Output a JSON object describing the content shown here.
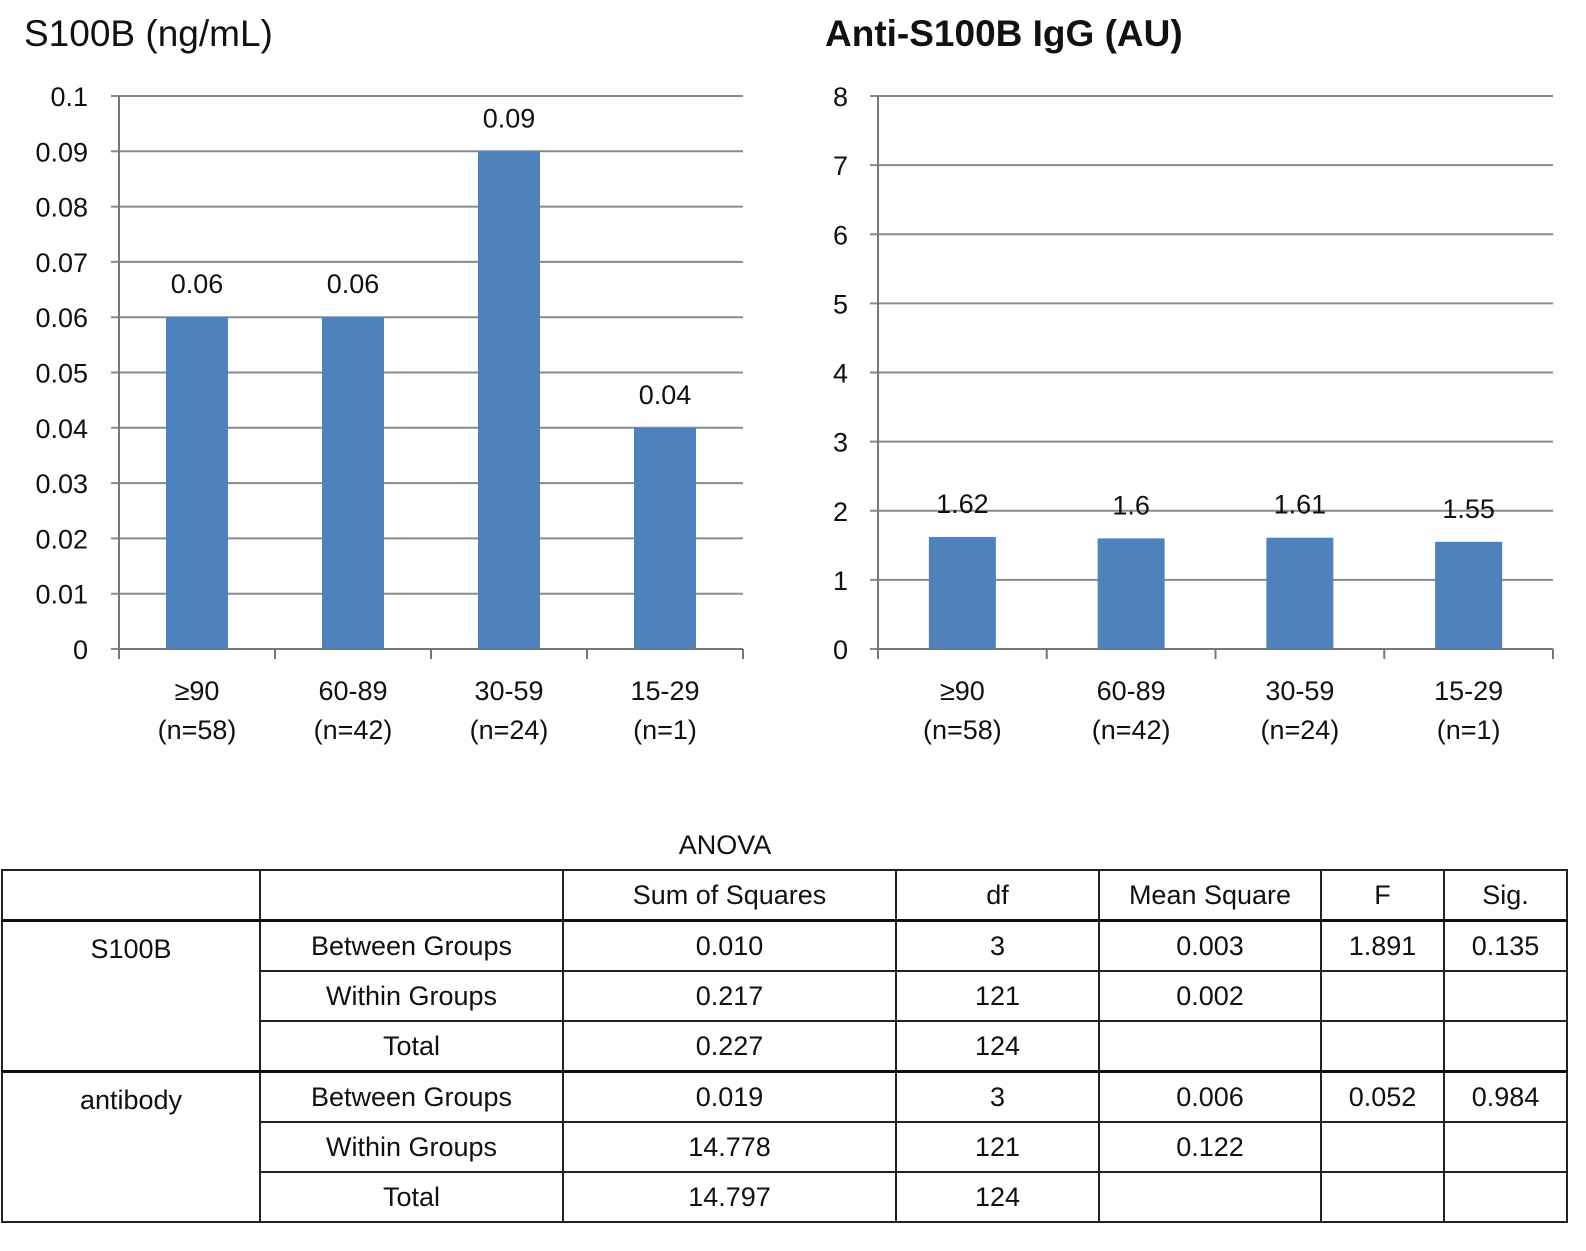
{
  "chart_data": [
    {
      "type": "bar",
      "title": "S100B (ng/mL)",
      "categories": [
        "≥90",
        "60-89",
        "30-59",
        "15-29"
      ],
      "category_counts": [
        "(n=58)",
        "(n=42)",
        "(n=24)",
        "(n=1)"
      ],
      "values": [
        0.06,
        0.06,
        0.09,
        0.04
      ],
      "data_labels": [
        "0.06",
        "0.06",
        "0.09",
        "0.04"
      ],
      "ylim": [
        0,
        0.1
      ],
      "yticks": [
        "0",
        "0.01",
        "0.02",
        "0.03",
        "0.04",
        "0.05",
        "0.06",
        "0.07",
        "0.08",
        "0.09",
        "0.1"
      ],
      "grid": true,
      "bar_color": "#4f81bd"
    },
    {
      "type": "bar",
      "title": "Anti-S100B IgG (AU)",
      "categories": [
        "≥90",
        "60-89",
        "30-59",
        "15-29"
      ],
      "category_counts": [
        "(n=58)",
        "(n=42)",
        "(n=24)",
        "(n=1)"
      ],
      "values": [
        1.62,
        1.6,
        1.61,
        1.55
      ],
      "data_labels": [
        "1.62",
        "1.6",
        "1.61",
        "1.55"
      ],
      "ylim": [
        0,
        8
      ],
      "yticks": [
        "0",
        "1",
        "2",
        "3",
        "4",
        "5",
        "6",
        "7",
        "8"
      ],
      "grid": true,
      "bar_color": "#4f81bd"
    }
  ],
  "anova": {
    "title": "ANOVA",
    "headers": [
      "",
      "",
      "Sum of Squares",
      "df",
      "Mean Square",
      "F",
      "Sig."
    ],
    "rows": [
      [
        "S100B",
        "Between Groups",
        "0.010",
        "3",
        "0.003",
        "1.891",
        "0.135"
      ],
      [
        "",
        "Within Groups",
        "0.217",
        "121",
        "0.002",
        "",
        ""
      ],
      [
        "",
        "Total",
        "0.227",
        "124",
        "",
        "",
        ""
      ],
      [
        "antibody",
        "Between Groups",
        "0.019",
        "3",
        "0.006",
        "0.052",
        "0.984"
      ],
      [
        "",
        "Within Groups",
        "14.778",
        "121",
        "0.122",
        "",
        ""
      ],
      [
        "",
        "Total",
        "14.797",
        "124",
        "",
        "",
        ""
      ]
    ]
  }
}
